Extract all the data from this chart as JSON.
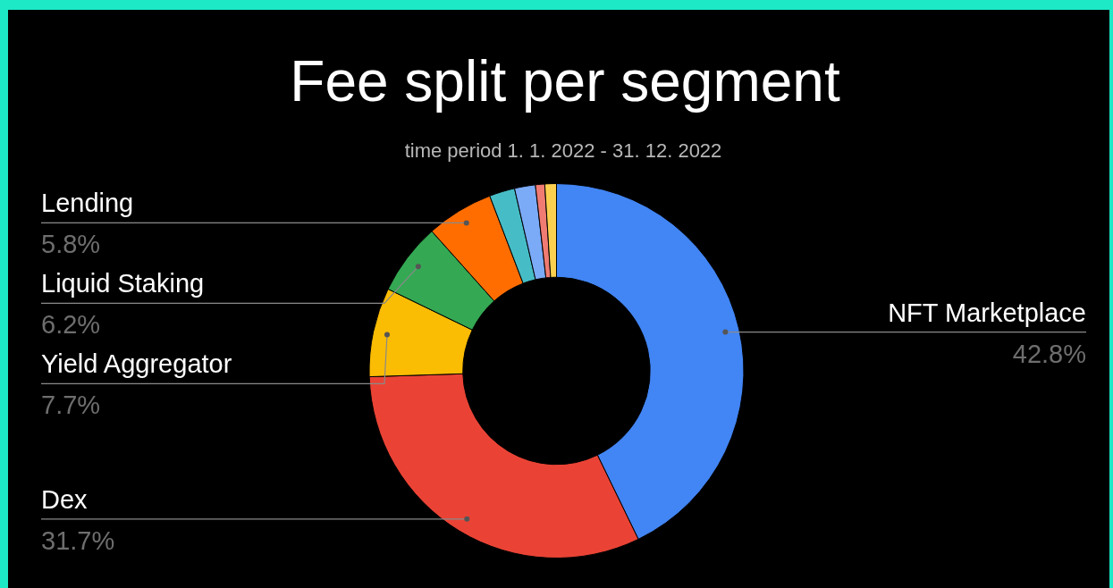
{
  "chart_data": {
    "type": "donut",
    "title": "Fee split per segment",
    "subtitle": "time period 1. 1. 2022 - 31. 12. 2022",
    "categories": [
      "NFT Marketplace",
      "Dex",
      "Yield Aggregator",
      "Liquid Staking",
      "Lending",
      null,
      null,
      null,
      null
    ],
    "values": [
      42.8,
      31.7,
      7.7,
      6.2,
      5.8,
      2.2,
      1.8,
      0.8,
      1.0
    ],
    "colors": [
      "#4285f4",
      "#ea4335",
      "#fbbc04",
      "#34a853",
      "#ff6d01",
      "#46bdc6",
      "#7baaf7",
      "#f07b72",
      "#fcd04f"
    ],
    "value_labels": [
      "42.8%",
      "31.7%",
      "7.7%",
      "6.2%",
      "5.8%",
      null,
      null,
      null,
      null
    ]
  }
}
